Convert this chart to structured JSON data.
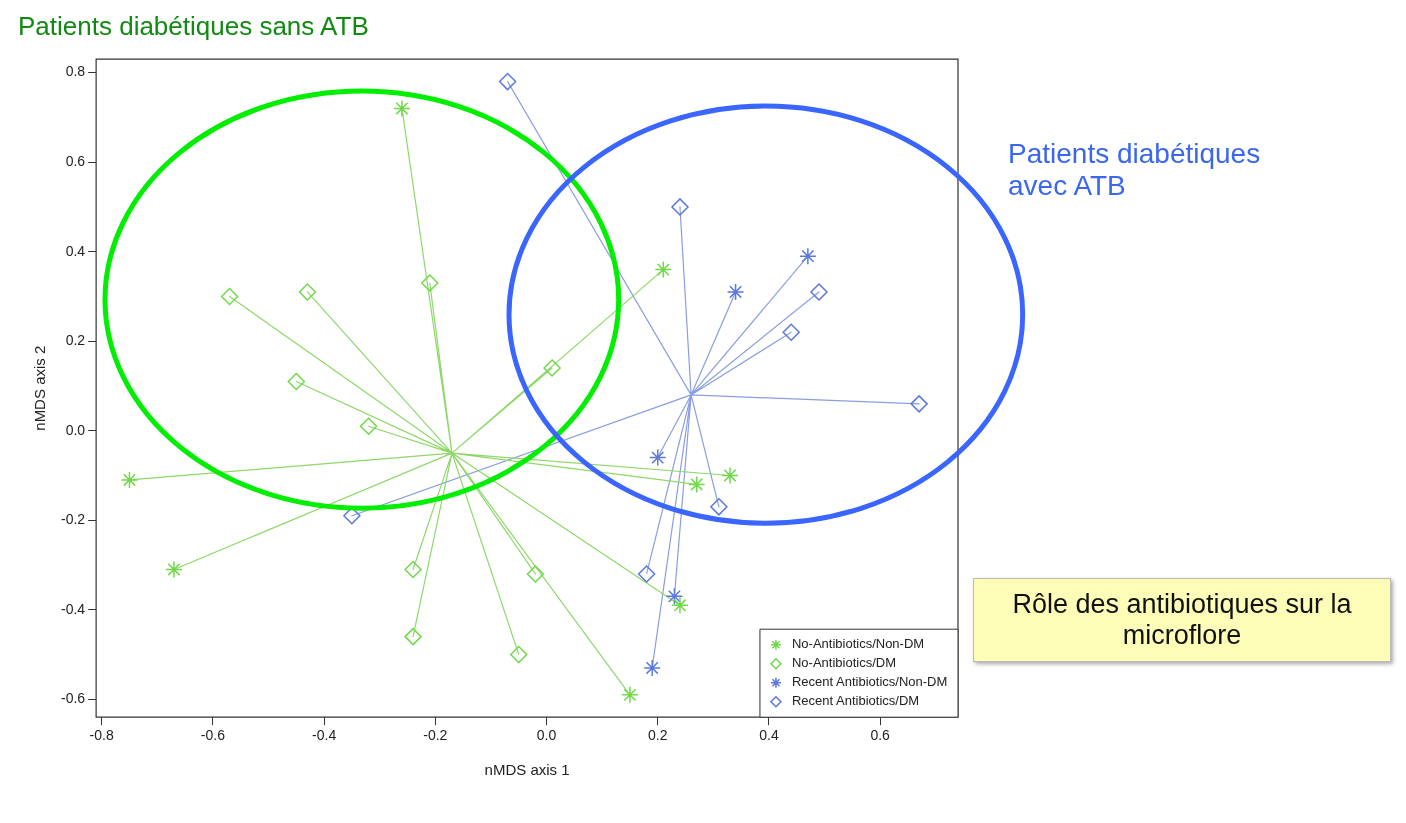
{
  "chart_data": {
    "type": "scatter",
    "title": "Patients diabétiques sans ATB",
    "xlabel": "nMDS axis 1",
    "ylabel": "nMDS axis 2",
    "annotations": [
      "Patients diabétiques avec ATB",
      "Rôle des antibiotiques sur la microflore"
    ],
    "xlim": [
      -0.81,
      0.74
    ],
    "ylim": [
      -0.64,
      0.83
    ],
    "xticks": [
      {
        "value": -0.8,
        "label": "-0.8"
      },
      {
        "value": -0.6,
        "label": "-0.6"
      },
      {
        "value": -0.4,
        "label": "-0.4"
      },
      {
        "value": -0.2,
        "label": "-0.2"
      },
      {
        "value": 0,
        "label": "0.0"
      },
      {
        "value": 0.2,
        "label": "0.2"
      },
      {
        "value": 0.4,
        "label": "0.4"
      },
      {
        "value": 0.6,
        "label": "0.6"
      }
    ],
    "yticks": [
      {
        "value": -0.6,
        "label": "-0.6"
      },
      {
        "value": -0.4,
        "label": "-0.4"
      },
      {
        "value": -0.2,
        "label": "-0.2"
      },
      {
        "value": 0,
        "label": "0.0"
      },
      {
        "value": 0.2,
        "label": "0.2"
      },
      {
        "value": 0.4,
        "label": "0.4"
      },
      {
        "value": 0.6,
        "label": "0.6"
      },
      {
        "value": 0.8,
        "label": "0.8"
      }
    ],
    "grid": false,
    "legend": "bottom right",
    "series": [
      {
        "type": "line",
        "color": "#8ed86a",
        "marker": "none",
        "x": [
          -0.17,
          -0.26,
          -0.17,
          0.21,
          -0.17,
          -0.75,
          -0.17,
          -0.67,
          -0.17,
          0.27,
          -0.17,
          0.33,
          -0.17,
          0.24,
          -0.17,
          0.15,
          -0.17,
          -0.57,
          -0.17,
          -0.43,
          -0.17,
          -0.21,
          -0.17,
          -0.45,
          -0.17,
          -0.32,
          -0.17,
          0.01,
          -0.17,
          -0.24,
          -0.17,
          -0.24,
          -0.17,
          -0.02,
          -0.17,
          -0.05
        ],
        "values": [
          -0.05,
          0.72,
          -0.05,
          0.36,
          -0.05,
          -0.11,
          -0.05,
          -0.31,
          -0.05,
          -0.12,
          -0.05,
          -0.1,
          -0.05,
          -0.39,
          -0.05,
          -0.59,
          -0.05,
          0.3,
          -0.05,
          0.31,
          -0.05,
          0.33,
          -0.05,
          0.11,
          -0.05,
          0.01,
          -0.05,
          0.14,
          -0.05,
          -0.31,
          -0.05,
          -0.46,
          -0.05,
          -0.32,
          -0.05,
          -0.5
        ]
      },
      {
        "type": "line",
        "color": "#8a9ee0",
        "marker": "none",
        "x": [
          0.26,
          0.47,
          0.26,
          0.34,
          0.26,
          0.2,
          0.26,
          0.23,
          0.26,
          0.19,
          0.26,
          -0.07,
          0.26,
          0.24,
          0.26,
          0.49,
          0.26,
          0.44,
          0.26,
          0.67,
          0.26,
          -0.35,
          0.26,
          0.31,
          0.26,
          0.18
        ],
        "values": [
          0.08,
          0.39,
          0.08,
          0.31,
          0.08,
          -0.06,
          0.08,
          -0.37,
          0.08,
          -0.53,
          0.08,
          0.78,
          0.08,
          0.5,
          0.08,
          0.31,
          0.08,
          0.22,
          0.08,
          0.06,
          0.08,
          -0.19,
          0.08,
          -0.17,
          0.08,
          -0.32
        ]
      },
      {
        "name": "No-Antibiotics/Non-DM",
        "color": "#6fd94a",
        "marker": "cross",
        "x": [
          -0.26,
          0.21,
          -0.75,
          -0.67,
          0.27,
          0.33,
          0.24,
          0.15
        ],
        "values": [
          0.72,
          0.36,
          -0.11,
          -0.31,
          -0.12,
          -0.1,
          -0.39,
          -0.59
        ]
      },
      {
        "name": "No-Antibiotics/DM",
        "color": "#6fd94a",
        "marker": "diamond",
        "x": [
          -0.57,
          -0.43,
          -0.21,
          -0.45,
          -0.32,
          0.01,
          -0.24,
          -0.24,
          -0.02,
          -0.05
        ],
        "values": [
          0.3,
          0.31,
          0.33,
          0.11,
          0.01,
          0.14,
          -0.31,
          -0.46,
          -0.32,
          -0.5
        ]
      },
      {
        "name": "Recent Antibiotics/Non-DM",
        "color": "#5a78e0",
        "marker": "cross",
        "x": [
          0.47,
          0.34,
          0.2,
          0.23,
          0.19
        ],
        "values": [
          0.39,
          0.31,
          -0.06,
          -0.37,
          -0.53
        ]
      },
      {
        "name": "Recent Antibiotics/DM",
        "color": "#5a78e0",
        "marker": "diamond",
        "x": [
          -0.07,
          0.24,
          0.49,
          0.44,
          0.67,
          -0.35,
          0.31,
          0.18
        ],
        "values": [
          0.78,
          0.5,
          0.31,
          0.22,
          0.06,
          -0.19,
          -0.17,
          -0.32
        ]
      }
    ]
  }
}
